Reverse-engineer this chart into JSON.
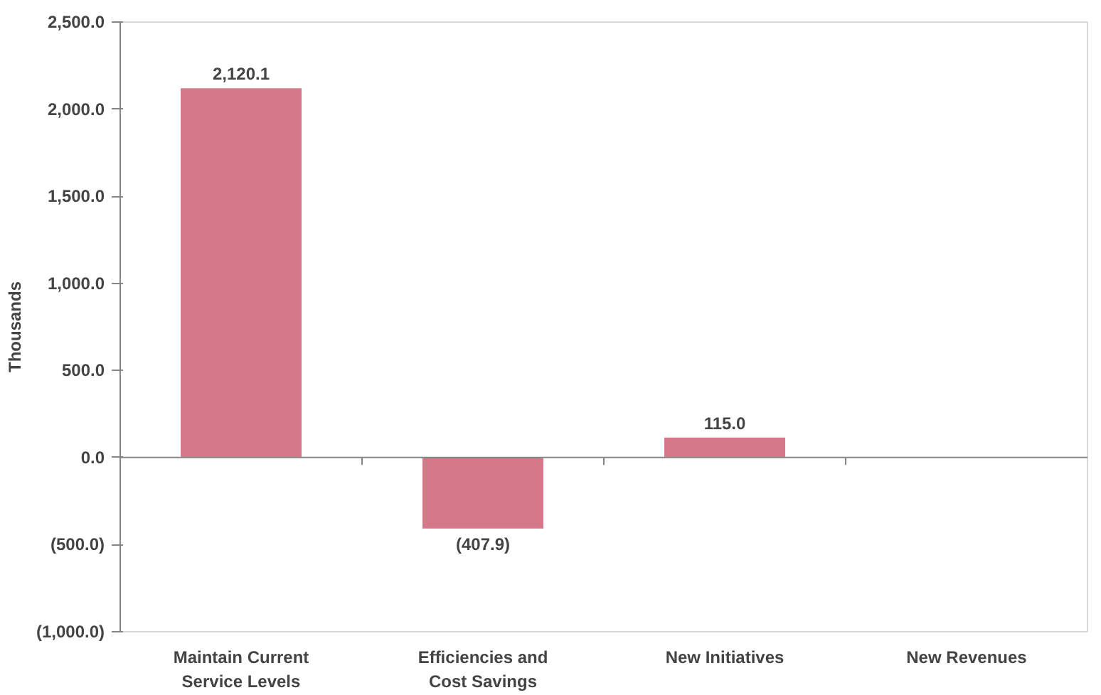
{
  "chart_data": {
    "type": "bar",
    "ylabel": "Thousands",
    "categories": [
      "Maintain Current Service Levels",
      "Efficiencies and Cost Savings",
      "New Initiatives",
      "New Revenues"
    ],
    "values": [
      2120.1,
      -407.9,
      115.0,
      null
    ],
    "value_labels": [
      "2,120.1",
      "(407.9)",
      "115.0",
      null
    ],
    "color": "#d4788a",
    "ylim": [
      -1000,
      2500
    ],
    "yticks": [
      {
        "value": -1000,
        "label": "(1,000.0)"
      },
      {
        "value": -500,
        "label": "(500.0)"
      },
      {
        "value": 0,
        "label": "0.0"
      },
      {
        "value": 500,
        "label": "500.0"
      },
      {
        "value": 1000,
        "label": "1,000.0"
      },
      {
        "value": 1500,
        "label": "1,500.0"
      },
      {
        "value": 2000,
        "label": "2,000.0"
      },
      {
        "value": 2500,
        "label": "2,500.0"
      }
    ]
  }
}
